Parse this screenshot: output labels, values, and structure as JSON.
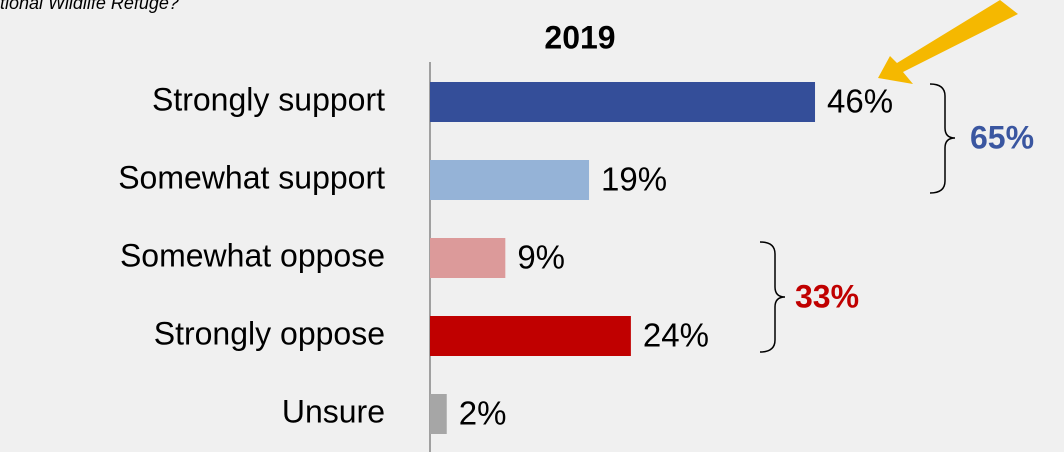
{
  "chart_data": {
    "type": "bar",
    "orientation": "horizontal",
    "subtitle": "tional Wildlife Refuge?",
    "title": "2019",
    "categories": [
      "Strongly support",
      "Somewhat support",
      "Somewhat oppose",
      "Strongly oppose",
      "Unsure"
    ],
    "values": [
      46,
      19,
      9,
      24,
      2
    ],
    "value_labels": [
      "46%",
      "19%",
      "9%",
      "24%",
      "2%"
    ],
    "colors": [
      "#344e99",
      "#95b3d7",
      "#dc9a9a",
      "#c00000",
      "#a6a6a6"
    ],
    "annotations": [
      {
        "text": "65%",
        "color": "#3a56a0"
      },
      {
        "text": "33%",
        "color": "#c00000"
      }
    ]
  }
}
